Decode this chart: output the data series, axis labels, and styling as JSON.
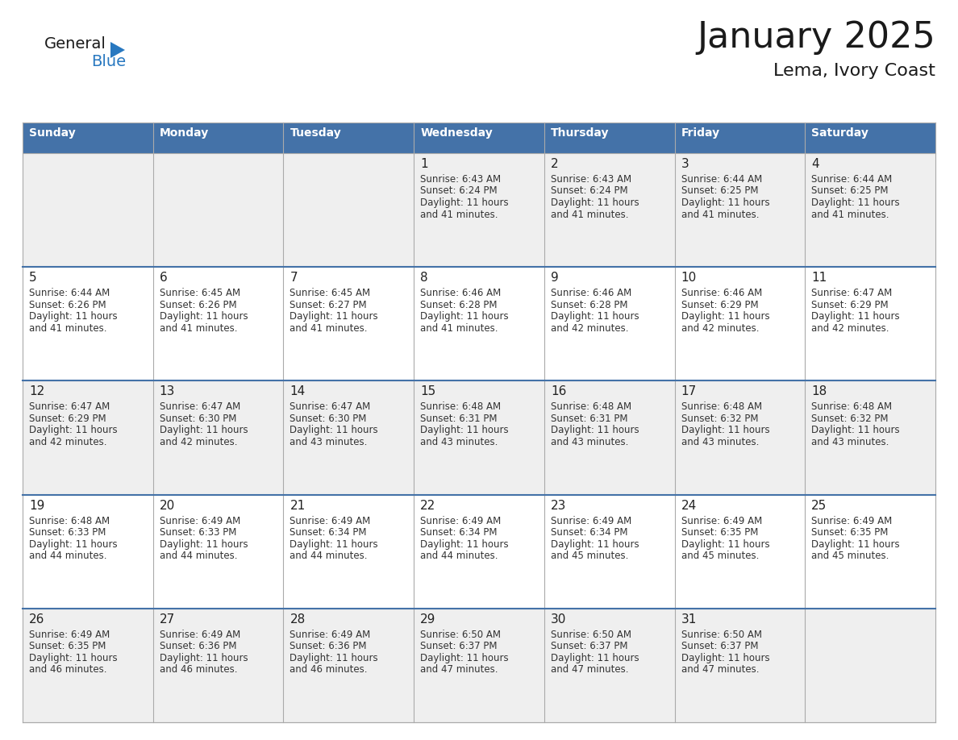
{
  "title": "January 2025",
  "subtitle": "Lema, Ivory Coast",
  "days_of_week": [
    "Sunday",
    "Monday",
    "Tuesday",
    "Wednesday",
    "Thursday",
    "Friday",
    "Saturday"
  ],
  "header_bg": "#4472A8",
  "header_text": "#FFFFFF",
  "cell_bg_even": "#EFEFEF",
  "cell_bg_odd": "#FFFFFF",
  "cell_border": "#AAAAAA",
  "day_number_color": "#222222",
  "content_color": "#333333",
  "title_color": "#1a1a1a",
  "subtitle_color": "#1a1a1a",
  "logo_general_color": "#1a1a1a",
  "logo_blue_color": "#2878C0",
  "weeks": [
    [
      null,
      null,
      null,
      {
        "day": 1,
        "sunrise": "6:43 AM",
        "sunset": "6:24 PM",
        "daylight_hours": 11,
        "daylight_minutes": 41
      },
      {
        "day": 2,
        "sunrise": "6:43 AM",
        "sunset": "6:24 PM",
        "daylight_hours": 11,
        "daylight_minutes": 41
      },
      {
        "day": 3,
        "sunrise": "6:44 AM",
        "sunset": "6:25 PM",
        "daylight_hours": 11,
        "daylight_minutes": 41
      },
      {
        "day": 4,
        "sunrise": "6:44 AM",
        "sunset": "6:25 PM",
        "daylight_hours": 11,
        "daylight_minutes": 41
      }
    ],
    [
      {
        "day": 5,
        "sunrise": "6:44 AM",
        "sunset": "6:26 PM",
        "daylight_hours": 11,
        "daylight_minutes": 41
      },
      {
        "day": 6,
        "sunrise": "6:45 AM",
        "sunset": "6:26 PM",
        "daylight_hours": 11,
        "daylight_minutes": 41
      },
      {
        "day": 7,
        "sunrise": "6:45 AM",
        "sunset": "6:27 PM",
        "daylight_hours": 11,
        "daylight_minutes": 41
      },
      {
        "day": 8,
        "sunrise": "6:46 AM",
        "sunset": "6:28 PM",
        "daylight_hours": 11,
        "daylight_minutes": 41
      },
      {
        "day": 9,
        "sunrise": "6:46 AM",
        "sunset": "6:28 PM",
        "daylight_hours": 11,
        "daylight_minutes": 42
      },
      {
        "day": 10,
        "sunrise": "6:46 AM",
        "sunset": "6:29 PM",
        "daylight_hours": 11,
        "daylight_minutes": 42
      },
      {
        "day": 11,
        "sunrise": "6:47 AM",
        "sunset": "6:29 PM",
        "daylight_hours": 11,
        "daylight_minutes": 42
      }
    ],
    [
      {
        "day": 12,
        "sunrise": "6:47 AM",
        "sunset": "6:29 PM",
        "daylight_hours": 11,
        "daylight_minutes": 42
      },
      {
        "day": 13,
        "sunrise": "6:47 AM",
        "sunset": "6:30 PM",
        "daylight_hours": 11,
        "daylight_minutes": 42
      },
      {
        "day": 14,
        "sunrise": "6:47 AM",
        "sunset": "6:30 PM",
        "daylight_hours": 11,
        "daylight_minutes": 43
      },
      {
        "day": 15,
        "sunrise": "6:48 AM",
        "sunset": "6:31 PM",
        "daylight_hours": 11,
        "daylight_minutes": 43
      },
      {
        "day": 16,
        "sunrise": "6:48 AM",
        "sunset": "6:31 PM",
        "daylight_hours": 11,
        "daylight_minutes": 43
      },
      {
        "day": 17,
        "sunrise": "6:48 AM",
        "sunset": "6:32 PM",
        "daylight_hours": 11,
        "daylight_minutes": 43
      },
      {
        "day": 18,
        "sunrise": "6:48 AM",
        "sunset": "6:32 PM",
        "daylight_hours": 11,
        "daylight_minutes": 43
      }
    ],
    [
      {
        "day": 19,
        "sunrise": "6:48 AM",
        "sunset": "6:33 PM",
        "daylight_hours": 11,
        "daylight_minutes": 44
      },
      {
        "day": 20,
        "sunrise": "6:49 AM",
        "sunset": "6:33 PM",
        "daylight_hours": 11,
        "daylight_minutes": 44
      },
      {
        "day": 21,
        "sunrise": "6:49 AM",
        "sunset": "6:34 PM",
        "daylight_hours": 11,
        "daylight_minutes": 44
      },
      {
        "day": 22,
        "sunrise": "6:49 AM",
        "sunset": "6:34 PM",
        "daylight_hours": 11,
        "daylight_minutes": 44
      },
      {
        "day": 23,
        "sunrise": "6:49 AM",
        "sunset": "6:34 PM",
        "daylight_hours": 11,
        "daylight_minutes": 45
      },
      {
        "day": 24,
        "sunrise": "6:49 AM",
        "sunset": "6:35 PM",
        "daylight_hours": 11,
        "daylight_minutes": 45
      },
      {
        "day": 25,
        "sunrise": "6:49 AM",
        "sunset": "6:35 PM",
        "daylight_hours": 11,
        "daylight_minutes": 45
      }
    ],
    [
      {
        "day": 26,
        "sunrise": "6:49 AM",
        "sunset": "6:35 PM",
        "daylight_hours": 11,
        "daylight_minutes": 46
      },
      {
        "day": 27,
        "sunrise": "6:49 AM",
        "sunset": "6:36 PM",
        "daylight_hours": 11,
        "daylight_minutes": 46
      },
      {
        "day": 28,
        "sunrise": "6:49 AM",
        "sunset": "6:36 PM",
        "daylight_hours": 11,
        "daylight_minutes": 46
      },
      {
        "day": 29,
        "sunrise": "6:50 AM",
        "sunset": "6:37 PM",
        "daylight_hours": 11,
        "daylight_minutes": 47
      },
      {
        "day": 30,
        "sunrise": "6:50 AM",
        "sunset": "6:37 PM",
        "daylight_hours": 11,
        "daylight_minutes": 47
      },
      {
        "day": 31,
        "sunrise": "6:50 AM",
        "sunset": "6:37 PM",
        "daylight_hours": 11,
        "daylight_minutes": 47
      },
      null
    ]
  ]
}
